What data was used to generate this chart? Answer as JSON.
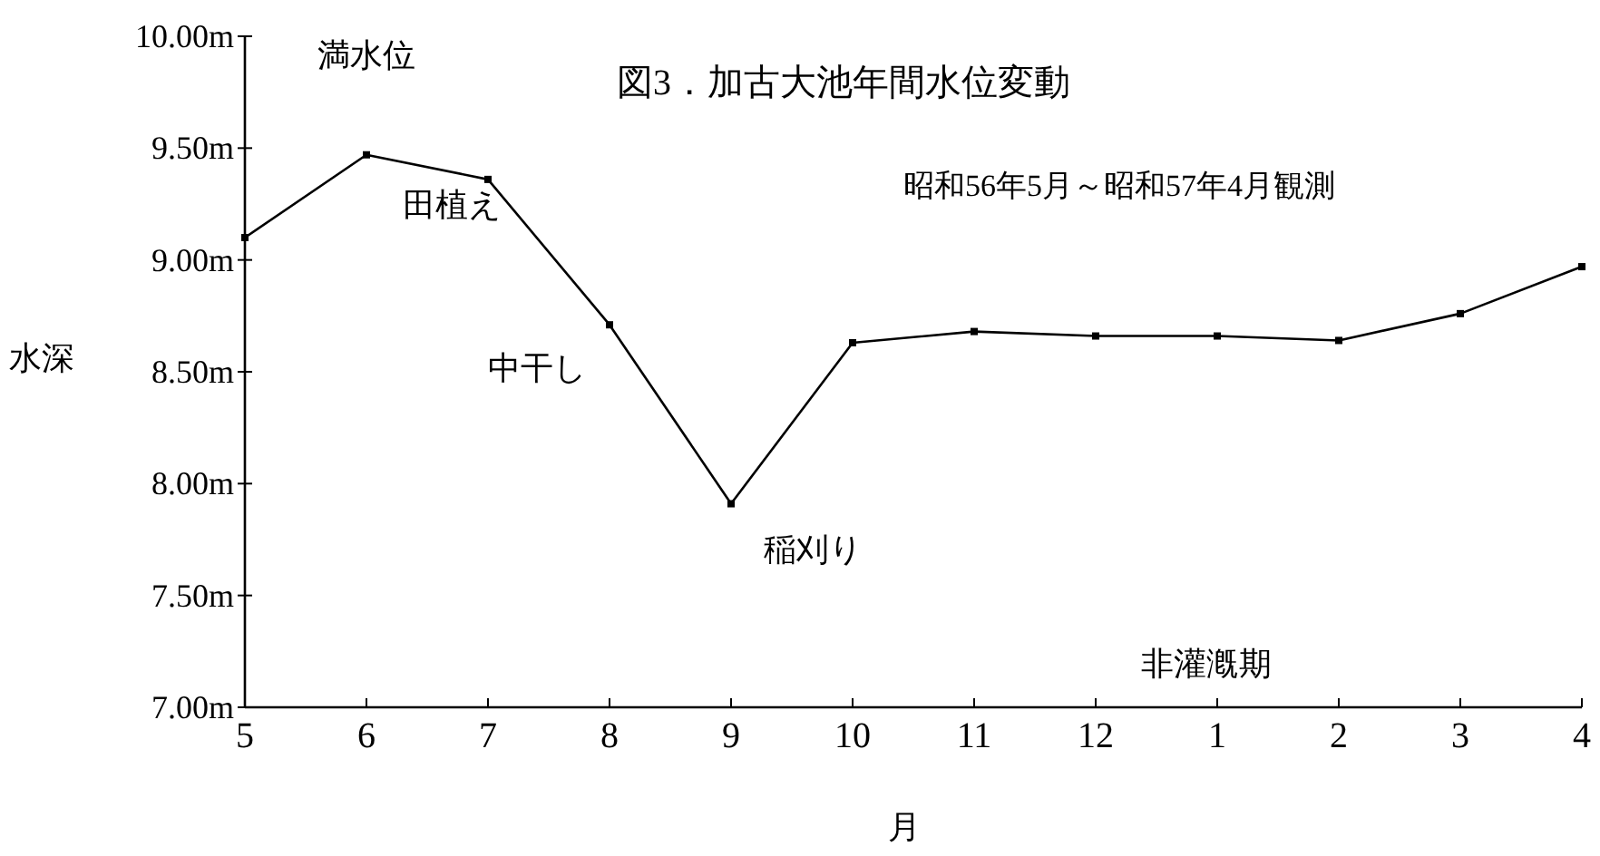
{
  "chart_data": {
    "type": "line",
    "title": "図3．加古大池年間水位変動",
    "subtitle": "昭和56年5月～昭和57年4月観測",
    "xlabel": "月",
    "ylabel": "水深",
    "categories": [
      "5",
      "6",
      "7",
      "8",
      "9",
      "10",
      "11",
      "12",
      "1",
      "2",
      "3",
      "4"
    ],
    "series": [
      {
        "color": "#000000",
        "values": [
          9.1,
          9.47,
          9.36,
          8.71,
          7.91,
          8.63,
          8.68,
          8.66,
          8.66,
          8.64,
          8.76,
          8.97
        ]
      }
    ],
    "ylim": [
      7,
      10
    ],
    "yticks": [
      {
        "value": 7,
        "label": "7.00m"
      },
      {
        "value": 7.5,
        "label": "7.50m"
      },
      {
        "value": 8,
        "label": "8.00m"
      },
      {
        "value": 8.5,
        "label": "8.50m"
      },
      {
        "value": 9,
        "label": "9.00m"
      },
      {
        "value": 9.5,
        "label": "9.50m"
      },
      {
        "value": 10,
        "label": "10.00m"
      }
    ],
    "annotations": [
      {
        "text": "満水位",
        "x": "6",
        "y": 9.47
      },
      {
        "text": "田植え",
        "x": "7",
        "y": 9.36
      },
      {
        "text": "中干し",
        "x": "8",
        "y": 8.71
      },
      {
        "text": "稲刈り",
        "x": "9",
        "y": 7.91
      },
      "非灌漑期"
    ],
    "grid": false,
    "marker": "square",
    "line_style": "solid"
  }
}
